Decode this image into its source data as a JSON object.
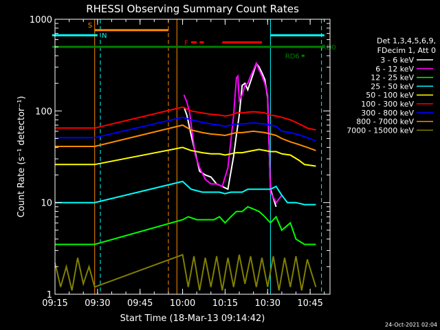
{
  "chart_data": {
    "type": "line",
    "title": "RHESSI Observing Summary Count Rates",
    "xlabel": "Start Time (18-Mar-13 09:14:42)",
    "ylabel": "Count Rate (s⁻¹ detector⁻¹)",
    "yscale": "log",
    "ylim": [
      1,
      1000
    ],
    "xlim_minutes_after_0915": [
      0,
      97
    ],
    "x_ticks": [
      {
        "label": "09:15",
        "min": 0
      },
      {
        "label": "09:30",
        "min": 15
      },
      {
        "label": "09:45",
        "min": 30
      },
      {
        "label": "10:00",
        "min": 45
      },
      {
        "label": "10:15",
        "min": 60
      },
      {
        "label": "10:30",
        "min": 75
      },
      {
        "label": "10:45",
        "min": 90
      }
    ],
    "y_ticks": [
      {
        "label": "1",
        "v": 1
      },
      {
        "label": "10",
        "v": 10
      },
      {
        "label": "100",
        "v": 100
      },
      {
        "label": "1000",
        "v": 1000
      }
    ],
    "legend_header": [
      "Det 1,3,4,5,6,9,",
      "FDecim 1, Att 0"
    ],
    "legend_placement": "right",
    "series": [
      {
        "name": "3 - 6 keV",
        "color": "#ffffff",
        "points": [
          [
            45.5,
            110
          ],
          [
            46.5,
            90
          ],
          [
            48,
            55
          ],
          [
            50,
            30
          ],
          [
            51,
            22
          ],
          [
            53,
            20
          ],
          [
            55,
            19
          ],
          [
            57,
            16
          ],
          [
            59,
            15
          ],
          [
            61,
            14
          ],
          [
            63,
            32
          ],
          [
            64,
            55
          ],
          [
            65,
            90
          ],
          [
            66,
            190
          ],
          [
            67,
            200
          ],
          [
            68,
            170
          ],
          [
            69,
            210
          ],
          [
            70,
            260
          ],
          [
            71,
            330
          ],
          [
            72,
            300
          ],
          [
            73,
            260
          ],
          [
            74,
            220
          ],
          [
            75,
            140
          ],
          [
            76,
            14
          ],
          [
            78,
            9
          ]
        ]
      },
      {
        "name": "6 - 12 keV",
        "color": "#ff00ff",
        "points": [
          [
            45.5,
            150
          ],
          [
            46.5,
            125
          ],
          [
            47.5,
            95
          ],
          [
            48.5,
            55
          ],
          [
            49.5,
            33
          ],
          [
            51,
            24
          ],
          [
            53,
            18
          ],
          [
            55,
            16
          ],
          [
            57,
            16
          ],
          [
            59,
            15
          ],
          [
            61,
            24
          ],
          [
            62,
            46
          ],
          [
            63,
            90
          ],
          [
            64,
            230
          ],
          [
            64.5,
            240
          ],
          [
            65,
            130
          ],
          [
            66,
            150
          ],
          [
            67,
            190
          ],
          [
            68,
            200
          ],
          [
            69,
            240
          ],
          [
            70,
            280
          ],
          [
            71,
            330
          ],
          [
            72,
            280
          ],
          [
            73,
            240
          ],
          [
            74,
            200
          ],
          [
            75,
            150
          ],
          [
            76,
            13
          ],
          [
            78,
            10
          ],
          [
            80,
            12
          ]
        ]
      },
      {
        "name": "12 - 25 keV",
        "color": "#00ff00",
        "points": [
          [
            0,
            3.5
          ],
          [
            14,
            3.5
          ],
          [
            45,
            6.5
          ],
          [
            47,
            7
          ],
          [
            50,
            6.5
          ],
          [
            53,
            6.5
          ],
          [
            56,
            6.5
          ],
          [
            58,
            7
          ],
          [
            60,
            6
          ],
          [
            62,
            7
          ],
          [
            64,
            8
          ],
          [
            66,
            8
          ],
          [
            68,
            9
          ],
          [
            70,
            8.5
          ],
          [
            72,
            8
          ],
          [
            74,
            7
          ],
          [
            76,
            6
          ],
          [
            78,
            7
          ],
          [
            80,
            5
          ],
          [
            83,
            6
          ],
          [
            85,
            4
          ],
          [
            88,
            3.5
          ],
          [
            92,
            3.5
          ]
        ]
      },
      {
        "name": "25 - 50 keV",
        "color": "#00ffff",
        "points": [
          [
            0,
            10
          ],
          [
            14,
            10
          ],
          [
            45,
            17
          ],
          [
            48,
            14
          ],
          [
            52,
            13
          ],
          [
            55,
            13
          ],
          [
            58,
            13
          ],
          [
            60,
            12.5
          ],
          [
            62,
            13
          ],
          [
            64,
            13
          ],
          [
            66,
            13
          ],
          [
            68,
            14
          ],
          [
            70,
            14
          ],
          [
            72,
            14
          ],
          [
            74,
            14
          ],
          [
            76,
            14
          ],
          [
            78,
            15
          ],
          [
            80,
            12
          ],
          [
            82,
            10
          ],
          [
            85,
            10
          ],
          [
            88,
            9.5
          ],
          [
            92,
            9.5
          ]
        ]
      },
      {
        "name": "50 - 100 keV",
        "color": "#ffff00",
        "points": [
          [
            0,
            26
          ],
          [
            14,
            26
          ],
          [
            45,
            40
          ],
          [
            48,
            37
          ],
          [
            52,
            35
          ],
          [
            55,
            34
          ],
          [
            58,
            34
          ],
          [
            60,
            33
          ],
          [
            62,
            34
          ],
          [
            64,
            35
          ],
          [
            66,
            35
          ],
          [
            68,
            36
          ],
          [
            70,
            37
          ],
          [
            72,
            38
          ],
          [
            74,
            37
          ],
          [
            76,
            36
          ],
          [
            78,
            36
          ],
          [
            80,
            34
          ],
          [
            83,
            33
          ],
          [
            86,
            29
          ],
          [
            88,
            26
          ],
          [
            92,
            25
          ]
        ]
      },
      {
        "name": "100 - 300 keV",
        "color": "#ff0000",
        "points": [
          [
            0,
            65
          ],
          [
            14,
            65
          ],
          [
            45,
            110
          ],
          [
            48,
            100
          ],
          [
            52,
            95
          ],
          [
            55,
            92
          ],
          [
            58,
            90
          ],
          [
            60,
            88
          ],
          [
            62,
            90
          ],
          [
            64,
            95
          ],
          [
            66,
            95
          ],
          [
            68,
            97
          ],
          [
            70,
            98
          ],
          [
            72,
            97
          ],
          [
            74,
            95
          ],
          [
            76,
            90
          ],
          [
            78,
            88
          ],
          [
            80,
            85
          ],
          [
            83,
            80
          ],
          [
            85,
            75
          ],
          [
            87,
            70
          ],
          [
            89,
            65
          ],
          [
            92,
            62
          ]
        ]
      },
      {
        "name": "300 - 800 keV",
        "color": "#0000ff",
        "points": [
          [
            0,
            51
          ],
          [
            14,
            51
          ],
          [
            45,
            85
          ],
          [
            48,
            80
          ],
          [
            52,
            75
          ],
          [
            55,
            72
          ],
          [
            58,
            70
          ],
          [
            60,
            68
          ],
          [
            62,
            70
          ],
          [
            64,
            72
          ],
          [
            66,
            72
          ],
          [
            68,
            73
          ],
          [
            70,
            74
          ],
          [
            72,
            73
          ],
          [
            74,
            72
          ],
          [
            76,
            70
          ],
          [
            78,
            68
          ],
          [
            80,
            60
          ],
          [
            83,
            58
          ],
          [
            86,
            55
          ],
          [
            89,
            51
          ],
          [
            92,
            47
          ]
        ]
      },
      {
        "name": "800 - 7000 keV",
        "color": "#ff8c00",
        "points": [
          [
            0,
            41
          ],
          [
            14,
            41
          ],
          [
            45,
            70
          ],
          [
            48,
            62
          ],
          [
            52,
            58
          ],
          [
            55,
            56
          ],
          [
            58,
            55
          ],
          [
            60,
            54
          ],
          [
            62,
            56
          ],
          [
            64,
            58
          ],
          [
            66,
            58
          ],
          [
            68,
            59
          ],
          [
            70,
            60
          ],
          [
            72,
            59
          ],
          [
            74,
            58
          ],
          [
            76,
            56
          ],
          [
            78,
            54
          ],
          [
            80,
            50
          ],
          [
            83,
            46
          ],
          [
            86,
            43
          ],
          [
            89,
            40
          ],
          [
            92,
            37
          ]
        ]
      },
      {
        "name": "7000 - 15000 keV",
        "color": "#808000",
        "points": [
          [
            0,
            2.2
          ],
          [
            2,
            1.2
          ],
          [
            4,
            2
          ],
          [
            6,
            1.1
          ],
          [
            8,
            2.5
          ],
          [
            10,
            1.3
          ],
          [
            12,
            2
          ],
          [
            14,
            1.2
          ],
          [
            45,
            2.7
          ],
          [
            47,
            1.2
          ],
          [
            49,
            2.6
          ],
          [
            51,
            1.1
          ],
          [
            53,
            2.5
          ],
          [
            55,
            1.2
          ],
          [
            57,
            2.6
          ],
          [
            59,
            1.1
          ],
          [
            61,
            2.5
          ],
          [
            63,
            1.2
          ],
          [
            65,
            2.7
          ],
          [
            67,
            1.3
          ],
          [
            69,
            2.6
          ],
          [
            71,
            1.2
          ],
          [
            73,
            2.5
          ],
          [
            75,
            1.2
          ],
          [
            77,
            2.6
          ],
          [
            79,
            1.1
          ],
          [
            81,
            2.5
          ],
          [
            83,
            1.2
          ],
          [
            85,
            2.6
          ],
          [
            87,
            1.1
          ],
          [
            89,
            2.4
          ],
          [
            92,
            1.2
          ]
        ]
      }
    ],
    "flags": [
      {
        "label": "S",
        "color": "#ff8c00",
        "y": 760,
        "segments": [
          [
            14,
            40
          ]
        ]
      },
      {
        "label": "N",
        "color": "#00ffff",
        "y": 670,
        "segments": [
          [
            -1,
            15
          ],
          [
            76,
            95
          ]
        ]
      },
      {
        "label": "F",
        "color": "#ff0000",
        "y": 560,
        "segments": [
          [
            48,
            50
          ],
          [
            51,
            52.5
          ],
          [
            59,
            73
          ]
        ]
      },
      {
        "label": "RD0",
        "color": "#008000",
        "y": 500,
        "segments": [
          [
            -1,
            95
          ]
        ]
      },
      {
        "label": "RD6",
        "color": "#008000",
        "y": 400,
        "segments": [
          [
            87,
            88
          ]
        ]
      }
    ],
    "vertical_markers": [
      {
        "min": 14,
        "color": "#ff8c00",
        "style": "solid"
      },
      {
        "min": 16,
        "color": "#00ffff",
        "style": "dashed"
      },
      {
        "min": 40,
        "color": "#ff8c00",
        "style": "dashed"
      },
      {
        "min": 43,
        "color": "#ff8c00",
        "style": "solid"
      },
      {
        "min": 76,
        "color": "#00ffff",
        "style": "solid"
      },
      {
        "min": 94,
        "color": "#00ffff",
        "style": "dashed"
      }
    ],
    "footer_date": "24-Oct-2021 02:04"
  }
}
